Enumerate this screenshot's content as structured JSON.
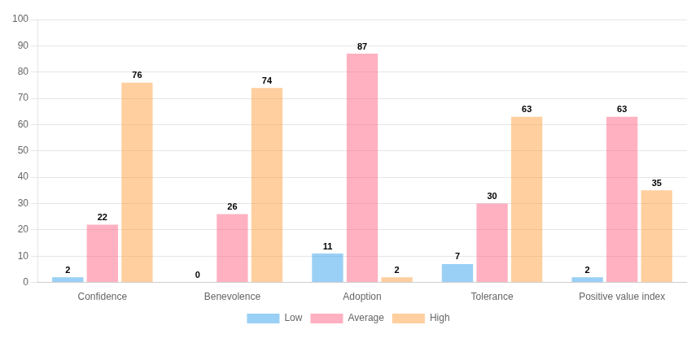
{
  "chart_data": {
    "type": "bar",
    "categories": [
      "Confidence",
      "Benevolence",
      "Adoption",
      "Tolerance",
      "Positive value index"
    ],
    "series": [
      {
        "name": "Low",
        "values": [
          2,
          0,
          11,
          7,
          2
        ]
      },
      {
        "name": "Average",
        "values": [
          22,
          26,
          87,
          30,
          63
        ]
      },
      {
        "name": "High",
        "values": [
          76,
          74,
          2,
          63,
          35
        ]
      }
    ],
    "ylim": [
      0,
      100
    ],
    "yticks": [
      0,
      10,
      20,
      30,
      40,
      50,
      60,
      70,
      80,
      90,
      100
    ],
    "grid": true,
    "legend": "bottom",
    "data_labels": true
  }
}
